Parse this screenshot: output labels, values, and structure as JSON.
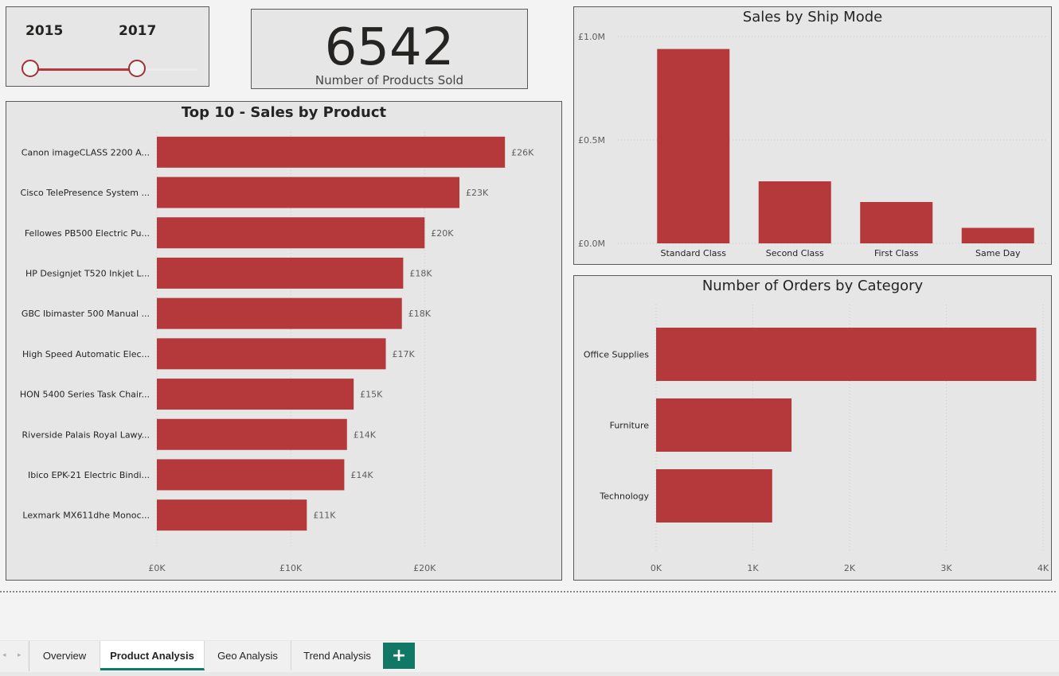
{
  "slicer": {
    "start_year": "2015",
    "end_year": "2017",
    "start_fraction": 0.0,
    "end_fraction": 0.66
  },
  "kpi": {
    "value": "6542",
    "label": "Number of Products Sold"
  },
  "colors": {
    "bar": "#b5393b",
    "tab_accent": "#117865",
    "card_bg": "#e6e6e6"
  },
  "chart_data": [
    {
      "type": "bar",
      "orientation": "horizontal",
      "title": "Top 10 - Sales by Product",
      "categories": [
        "Canon imageCLASS 2200 A...",
        "Cisco TelePresence System ...",
        "Fellowes PB500 Electric Pu...",
        "HP Designjet T520 Inkjet L...",
        "GBC Ibimaster 500 Manual ...",
        "High Speed Automatic Elec...",
        "HON 5400 Series Task Chair...",
        "Riverside Palais Royal Lawy...",
        "Ibico EPK-21 Electric Bindi...",
        "Lexmark MX611dhe Monoc..."
      ],
      "values": [
        26000,
        22600,
        20000,
        18400,
        18300,
        17100,
        14700,
        14200,
        14000,
        11200
      ],
      "data_labels": [
        "£26K",
        "£23K",
        "£20K",
        "£18K",
        "£18K",
        "£17K",
        "£15K",
        "£14K",
        "£14K",
        "£11K"
      ],
      "xlim": [
        0,
        27000
      ],
      "xticks": [
        0,
        10000,
        20000
      ],
      "xtick_labels": [
        "£0K",
        "£10K",
        "£20K"
      ],
      "grid": true
    },
    {
      "type": "bar",
      "orientation": "vertical",
      "title": "Sales by Ship Mode",
      "categories": [
        "Standard Class",
        "Second Class",
        "First Class",
        "Same Day"
      ],
      "values": [
        940000,
        300000,
        200000,
        75000
      ],
      "ylim": [
        0,
        1000000
      ],
      "yticks": [
        0,
        500000,
        1000000
      ],
      "ytick_labels": [
        "£0.0M",
        "£0.5M",
        "£1.0M"
      ],
      "grid": true
    },
    {
      "type": "bar",
      "orientation": "horizontal",
      "title": "Number of Orders by Category",
      "categories": [
        "Office Supplies",
        "Furniture",
        "Technology"
      ],
      "values": [
        3930,
        1400,
        1200
      ],
      "xlim": [
        0,
        4000
      ],
      "xticks": [
        0,
        1000,
        2000,
        3000,
        4000
      ],
      "xtick_labels": [
        "0K",
        "1K",
        "2K",
        "3K",
        "4K"
      ],
      "grid": true
    }
  ],
  "tabs": {
    "items": [
      {
        "label": "Overview",
        "active": false
      },
      {
        "label": "Product Analysis",
        "active": true
      },
      {
        "label": "Geo Analysis",
        "active": false
      },
      {
        "label": "Trend Analysis",
        "active": false
      }
    ],
    "add_label": "+",
    "prev_arrow": "◂",
    "next_arrow": "▸"
  }
}
